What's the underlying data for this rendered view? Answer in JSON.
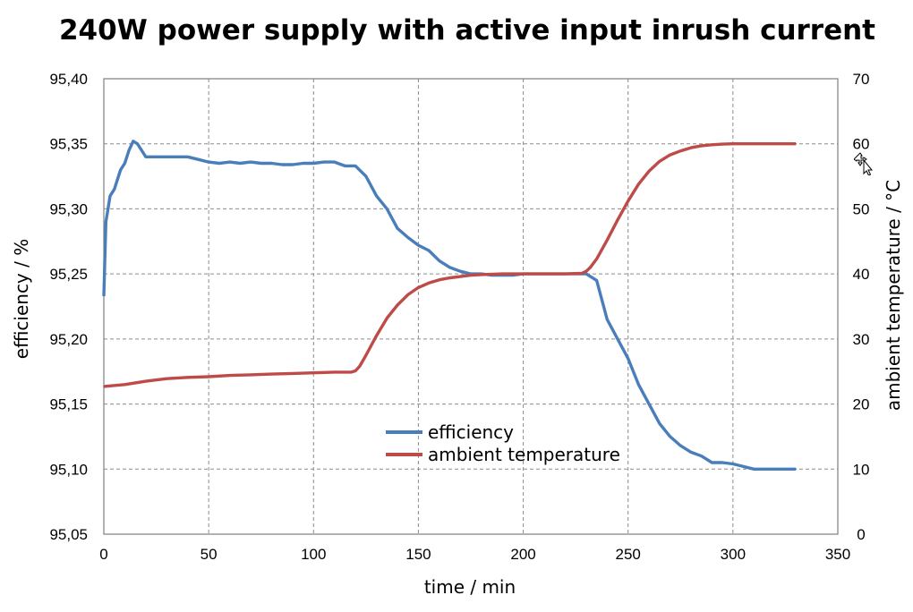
{
  "chart_data": {
    "type": "line",
    "title": "240W power supply with active input inrush current",
    "xlabel": "time / min",
    "ylabel": "efficiency / %",
    "y2label": "ambient temperature / °C",
    "xlim": [
      0,
      350
    ],
    "ylim": [
      95.05,
      95.4
    ],
    "y2lim": [
      0,
      70
    ],
    "x_ticks": [
      "0",
      "50",
      "100",
      "150",
      "200",
      "250",
      "300",
      "350"
    ],
    "y_ticks": [
      "95,05",
      "95,10",
      "95,15",
      "95,20",
      "95,25",
      "95,30",
      "95,35",
      "95,40"
    ],
    "y2_ticks": [
      "0",
      "10",
      "20",
      "30",
      "40",
      "50",
      "60",
      "70"
    ],
    "grid": true,
    "legend_position": "center-bottom",
    "series": [
      {
        "name": "efficiency",
        "axis": "left",
        "color": "#4a7ebb",
        "x": [
          0,
          1,
          2,
          3,
          5,
          8,
          10,
          12,
          14,
          16,
          18,
          20,
          25,
          30,
          35,
          40,
          45,
          50,
          55,
          60,
          65,
          70,
          75,
          80,
          85,
          90,
          95,
          100,
          105,
          110,
          115,
          120,
          125,
          130,
          135,
          140,
          145,
          150,
          155,
          160,
          165,
          170,
          175,
          180,
          185,
          190,
          195,
          200,
          205,
          210,
          215,
          220,
          225,
          230,
          235,
          240,
          245,
          250,
          255,
          260,
          265,
          270,
          275,
          280,
          285,
          290,
          295,
          300,
          305,
          310,
          315,
          320,
          325,
          330
        ],
        "values": [
          95.233,
          95.29,
          95.3,
          95.31,
          95.315,
          95.33,
          95.335,
          95.345,
          95.352,
          95.35,
          95.345,
          95.34,
          95.34,
          95.34,
          95.34,
          95.34,
          95.338,
          95.336,
          95.335,
          95.336,
          95.335,
          95.336,
          95.335,
          95.335,
          95.334,
          95.334,
          95.335,
          95.335,
          95.336,
          95.336,
          95.333,
          95.333,
          95.325,
          95.31,
          95.3,
          95.285,
          95.278,
          95.272,
          95.268,
          95.26,
          95.255,
          95.252,
          95.25,
          95.25,
          95.249,
          95.249,
          95.249,
          95.25,
          95.25,
          95.25,
          95.25,
          95.25,
          95.25,
          95.25,
          95.245,
          95.215,
          95.2,
          95.185,
          95.165,
          95.15,
          95.135,
          95.125,
          95.118,
          95.113,
          95.11,
          95.105,
          95.105,
          95.104,
          95.102,
          95.1,
          95.1,
          95.1,
          95.1,
          95.1
        ]
      },
      {
        "name": "ambient temperature",
        "axis": "right",
        "color": "#be4b48",
        "x": [
          0,
          10,
          20,
          30,
          40,
          50,
          60,
          70,
          80,
          90,
          100,
          110,
          118,
          120,
          122,
          125,
          130,
          135,
          140,
          145,
          150,
          155,
          160,
          165,
          170,
          175,
          180,
          190,
          200,
          210,
          220,
          228,
          230,
          232,
          235,
          240,
          245,
          250,
          255,
          260,
          265,
          270,
          275,
          280,
          285,
          290,
          295,
          300,
          310,
          320,
          330
        ],
        "values": [
          22.7,
          23.0,
          23.5,
          23.9,
          24.1,
          24.2,
          24.4,
          24.5,
          24.6,
          24.7,
          24.8,
          24.9,
          24.9,
          25.1,
          25.8,
          27.5,
          30.5,
          33.2,
          35.2,
          36.8,
          37.9,
          38.6,
          39.1,
          39.4,
          39.6,
          39.8,
          39.9,
          40.0,
          40.0,
          40.0,
          40.0,
          40.1,
          40.4,
          41.0,
          42.3,
          45.2,
          48.3,
          51.2,
          53.8,
          55.8,
          57.3,
          58.3,
          58.9,
          59.4,
          59.7,
          59.85,
          59.95,
          60.0,
          60.0,
          60.0,
          60.0
        ]
      }
    ]
  },
  "cursor": {
    "icon": "move-cursor-icon"
  }
}
